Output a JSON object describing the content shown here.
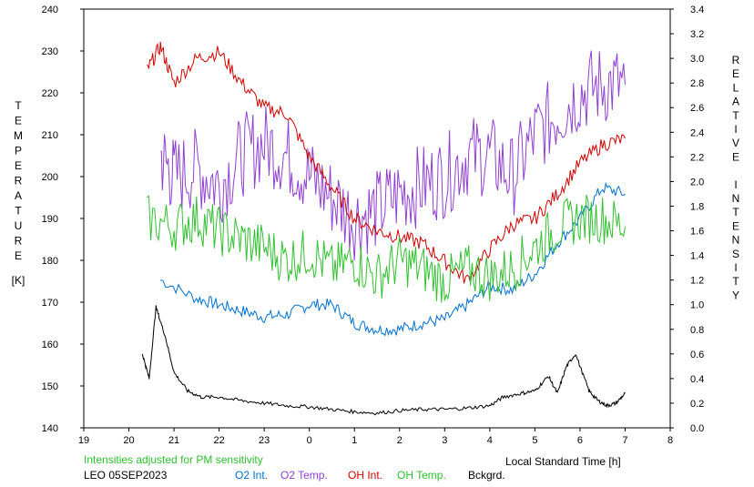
{
  "chart_data": {
    "type": "line",
    "xlabel": "Local Standard Time [h]",
    "x_ticks": [
      "19",
      "20",
      "21",
      "22",
      "23",
      "0",
      "1",
      "2",
      "3",
      "4",
      "5",
      "6",
      "7",
      "8"
    ],
    "x_range": [
      19,
      32
    ],
    "ylabel_left_letters": [
      "T",
      "E",
      "M",
      "P",
      "E",
      "R",
      "A",
      "T",
      "U",
      "R",
      "E"
    ],
    "ylabel_left_unit": "[K]",
    "ylabel_right_letters": [
      "R",
      "E",
      "L",
      "A",
      "T",
      "I",
      "V",
      "E",
      "",
      "I",
      "N",
      "T",
      "E",
      "N",
      "S",
      "I",
      "T",
      "Y"
    ],
    "y_left_range": [
      140,
      240
    ],
    "y_left_ticks": [
      "140",
      "150",
      "160",
      "170",
      "180",
      "190",
      "200",
      "210",
      "220",
      "230",
      "240"
    ],
    "y_right_range": [
      0.0,
      3.4
    ],
    "y_right_ticks": [
      "0.0",
      "0.2",
      "0.4",
      "0.6",
      "0.8",
      "1.0",
      "1.2",
      "1.4",
      "1.6",
      "1.8",
      "2.0",
      "2.2",
      "2.4",
      "2.6",
      "2.8",
      "3.0",
      "3.2",
      "3.4"
    ],
    "note": "Intensities adjusted for PM sensitivity",
    "station": "LEO 05SEP2023",
    "series": [
      {
        "name": "O2 Int.",
        "axis": "right",
        "color": "#0070d0",
        "x": [
          20.7,
          21.5,
          22.0,
          22.5,
          23.0,
          23.5,
          24.0,
          24.5,
          25.0,
          25.5,
          26.0,
          26.5,
          27.0,
          27.5,
          28.0,
          28.5,
          29.0,
          29.5,
          30.0,
          30.5,
          31.0
        ],
        "y": [
          1.2,
          1.05,
          1.0,
          0.95,
          0.9,
          0.92,
          1.0,
          1.0,
          0.85,
          0.8,
          0.8,
          0.85,
          0.88,
          1.0,
          1.15,
          1.12,
          1.25,
          1.5,
          1.7,
          1.95,
          1.9
        ]
      },
      {
        "name": "O2 Temp.",
        "axis": "left",
        "color": "#9040d0",
        "x": [
          20.7,
          21.0,
          21.5,
          22.0,
          22.5,
          23.0,
          23.5,
          24.0,
          24.5,
          25.0,
          25.5,
          26.0,
          26.5,
          27.0,
          27.5,
          28.0,
          28.5,
          29.0,
          29.5,
          30.0,
          30.5,
          31.0
        ],
        "y": [
          205,
          200,
          202,
          198,
          205,
          208,
          205,
          200,
          195,
          190,
          192,
          196,
          198,
          200,
          205,
          205,
          200,
          210,
          215,
          220,
          222,
          222
        ]
      },
      {
        "name": "OH Int.",
        "axis": "right",
        "color": "#d00000",
        "x": [
          20.4,
          20.7,
          21.0,
          21.5,
          22.0,
          22.5,
          23.0,
          23.5,
          24.0,
          24.5,
          25.0,
          25.5,
          26.0,
          26.5,
          27.0,
          27.5,
          28.0,
          28.5,
          29.0,
          29.5,
          30.0,
          30.5,
          31.0
        ],
        "y": [
          2.9,
          3.1,
          2.8,
          3.0,
          3.05,
          2.8,
          2.6,
          2.55,
          2.2,
          1.95,
          1.7,
          1.6,
          1.55,
          1.5,
          1.35,
          1.2,
          1.45,
          1.65,
          1.7,
          1.9,
          2.15,
          2.3,
          2.35
        ]
      },
      {
        "name": "OH Temp.",
        "axis": "left",
        "color": "#30c030",
        "x": [
          20.4,
          21.0,
          21.5,
          22.0,
          22.5,
          23.0,
          23.5,
          24.0,
          24.5,
          25.0,
          25.5,
          26.0,
          26.5,
          27.0,
          27.5,
          28.0,
          28.5,
          29.0,
          29.5,
          30.0,
          30.5,
          31.0
        ],
        "y": [
          190,
          188,
          190,
          187,
          185,
          183,
          180,
          182,
          178,
          180,
          176,
          180,
          178,
          175,
          178,
          176,
          178,
          183,
          188,
          190,
          190,
          188
        ]
      },
      {
        "name": "Bckgrd.",
        "axis": "right",
        "color": "#000000",
        "x": [
          20.3,
          20.45,
          20.6,
          20.8,
          21.0,
          21.3,
          21.6,
          22.0,
          22.5,
          23.0,
          23.5,
          24.0,
          24.5,
          25.0,
          25.5,
          26.0,
          26.5,
          27.0,
          27.5,
          28.0,
          28.3,
          28.7,
          29.0,
          29.3,
          29.5,
          29.7,
          29.9,
          30.2,
          30.4,
          30.6,
          30.8,
          31.0
        ],
        "y": [
          0.6,
          0.4,
          0.98,
          0.75,
          0.45,
          0.3,
          0.25,
          0.25,
          0.22,
          0.2,
          0.18,
          0.17,
          0.15,
          0.13,
          0.12,
          0.14,
          0.15,
          0.15,
          0.16,
          0.18,
          0.25,
          0.28,
          0.3,
          0.42,
          0.28,
          0.5,
          0.6,
          0.3,
          0.22,
          0.18,
          0.2,
          0.28
        ]
      }
    ]
  }
}
